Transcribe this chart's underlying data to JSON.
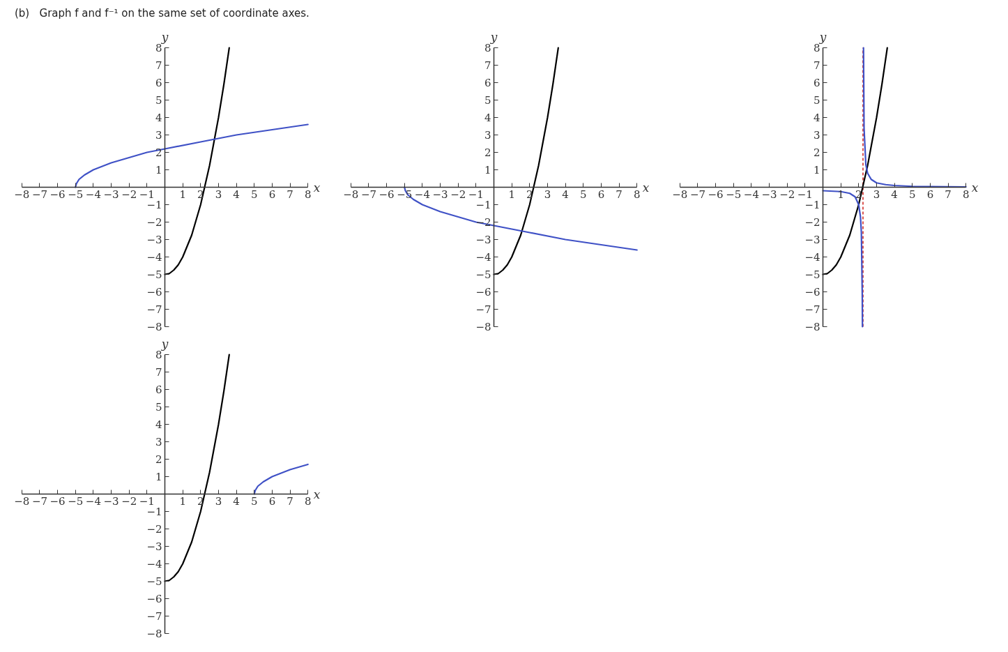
{
  "chart_data": [
    {
      "type": "other",
      "title": "(b)   Graph f and f⁻¹ on the same set of coordinate axes."
    },
    {
      "type": "line",
      "xlabel": "x",
      "ylabel": "y",
      "xlim": [
        -8,
        8
      ],
      "ylim": [
        -8,
        8
      ],
      "xticks": [
        -8,
        -7,
        -6,
        -5,
        -4,
        -3,
        -2,
        -1,
        1,
        2,
        3,
        4,
        5,
        6,
        7,
        8
      ],
      "yticks": [
        -8,
        -7,
        -6,
        -5,
        -4,
        -3,
        -2,
        -1,
        1,
        2,
        3,
        4,
        5,
        6,
        7,
        8
      ],
      "series": [
        {
          "color": "#000000",
          "x": [
            0,
            0.25,
            0.5,
            0.75,
            1,
            1.5,
            2,
            2.5,
            3,
            3.3,
            3.6
          ],
          "values": [
            -5,
            -4.95,
            -4.75,
            -4.45,
            -4,
            -2.75,
            -1,
            1.25,
            4,
            5.9,
            8
          ]
        },
        {
          "color": "#3f51c6",
          "x": [
            -5,
            -4.95,
            -4.8,
            -4.5,
            -4,
            -3,
            -2,
            -1,
            0,
            2,
            4,
            8
          ],
          "values": [
            0,
            0.2,
            0.45,
            0.7,
            1,
            1.4,
            1.7,
            2,
            2.2,
            2.6,
            3,
            3.6
          ]
        }
      ]
    },
    {
      "type": "line",
      "xlabel": "x",
      "ylabel": "y",
      "xlim": [
        -8,
        8
      ],
      "ylim": [
        -8,
        8
      ],
      "xticks": [
        -8,
        -7,
        -6,
        -5,
        -4,
        -3,
        -2,
        -1,
        1,
        2,
        3,
        4,
        5,
        6,
        7,
        8
      ],
      "yticks": [
        -8,
        -7,
        -6,
        -5,
        -4,
        -3,
        -2,
        -1,
        1,
        2,
        3,
        4,
        5,
        6,
        7,
        8
      ],
      "series": [
        {
          "color": "#000000",
          "x": [
            0,
            0.25,
            0.5,
            0.75,
            1,
            1.5,
            2,
            2.5,
            3,
            3.3,
            3.6
          ],
          "values": [
            -5,
            -4.95,
            -4.75,
            -4.45,
            -4,
            -2.75,
            -1,
            1.25,
            4,
            5.9,
            8
          ]
        },
        {
          "color": "#3f51c6",
          "x": [
            -5,
            -4.95,
            -4.8,
            -4.5,
            -4,
            -3,
            -2,
            -1,
            0,
            2,
            4,
            8
          ],
          "values": [
            0,
            -0.2,
            -0.45,
            -0.7,
            -1,
            -1.4,
            -1.7,
            -2,
            -2.2,
            -2.6,
            -3,
            -3.6
          ]
        }
      ]
    },
    {
      "type": "line",
      "xlabel": "x",
      "ylabel": "y",
      "xlim": [
        -8,
        8
      ],
      "ylim": [
        -8,
        8
      ],
      "xticks": [
        -8,
        -7,
        -6,
        -5,
        -4,
        -3,
        -2,
        -1,
        1,
        2,
        3,
        4,
        5,
        6,
        7,
        8
      ],
      "yticks": [
        -8,
        -7,
        -6,
        -5,
        -4,
        -3,
        -2,
        -1,
        1,
        2,
        3,
        4,
        5,
        6,
        7,
        8
      ],
      "series": [
        {
          "color": "#000000",
          "x": [
            0,
            0.25,
            0.5,
            0.75,
            1,
            1.5,
            2,
            2.5,
            3,
            3.3,
            3.6
          ],
          "values": [
            -5,
            -4.95,
            -4.75,
            -4.45,
            -4,
            -2.75,
            -1,
            1.25,
            4,
            5.9,
            8
          ]
        },
        {
          "color": "#3f51c6",
          "x": [
            0,
            1,
            1.5,
            1.8,
            2,
            2.1,
            2.15,
            2.2,
            2.21,
            2.24,
            2.27,
            2.3,
            2.4,
            2.5,
            2.7,
            3,
            3.5,
            4,
            5,
            8
          ],
          "values": [
            -0.2,
            -0.25,
            -0.35,
            -0.55,
            -1,
            -1.7,
            -2.6,
            -6.2,
            -8,
            null,
            8,
            3.4,
            1.3,
            0.8,
            0.45,
            0.25,
            0.15,
            0.1,
            0.05,
            0.02
          ]
        }
      ],
      "ref_lines": [
        {
          "axis": "x",
          "value": 2.24,
          "color": "#d9534f",
          "line_style": "dashed"
        }
      ]
    },
    {
      "type": "line",
      "xlabel": "x",
      "ylabel": "y",
      "xlim": [
        -8,
        8
      ],
      "ylim": [
        -8,
        8
      ],
      "xticks": [
        -8,
        -7,
        -6,
        -5,
        -4,
        -3,
        -2,
        -1,
        1,
        2,
        3,
        4,
        5,
        6,
        7,
        8
      ],
      "yticks": [
        -8,
        -7,
        -6,
        -5,
        -4,
        -3,
        -2,
        -1,
        1,
        2,
        3,
        4,
        5,
        6,
        7,
        8
      ],
      "series": [
        {
          "color": "#000000",
          "x": [
            0,
            0.25,
            0.5,
            0.75,
            1,
            1.5,
            2,
            2.5,
            3,
            3.3,
            3.6
          ],
          "values": [
            -5,
            -4.95,
            -4.75,
            -4.45,
            -4,
            -2.75,
            -1,
            1.25,
            4,
            5.9,
            8
          ]
        },
        {
          "color": "#3f51c6",
          "x": [
            5,
            5.05,
            5.2,
            5.5,
            6,
            7,
            8
          ],
          "values": [
            0,
            0.2,
            0.45,
            0.7,
            1,
            1.4,
            1.7
          ]
        }
      ]
    }
  ]
}
